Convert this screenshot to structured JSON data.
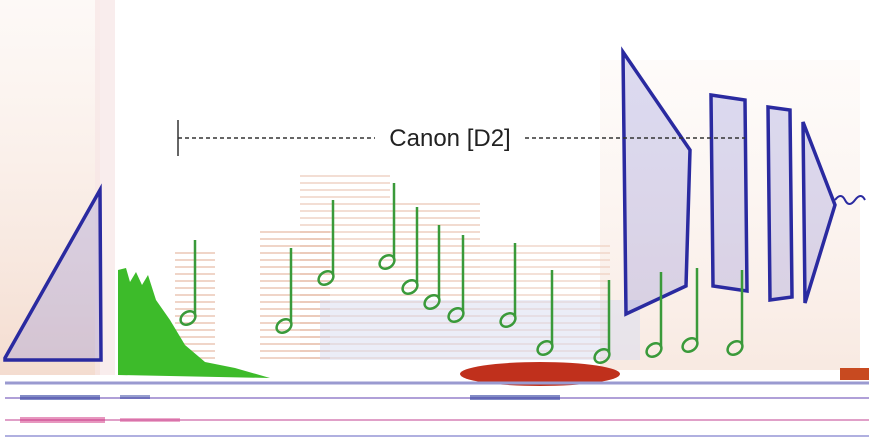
{
  "annotation": {
    "label": "Canon [D2]"
  }
}
